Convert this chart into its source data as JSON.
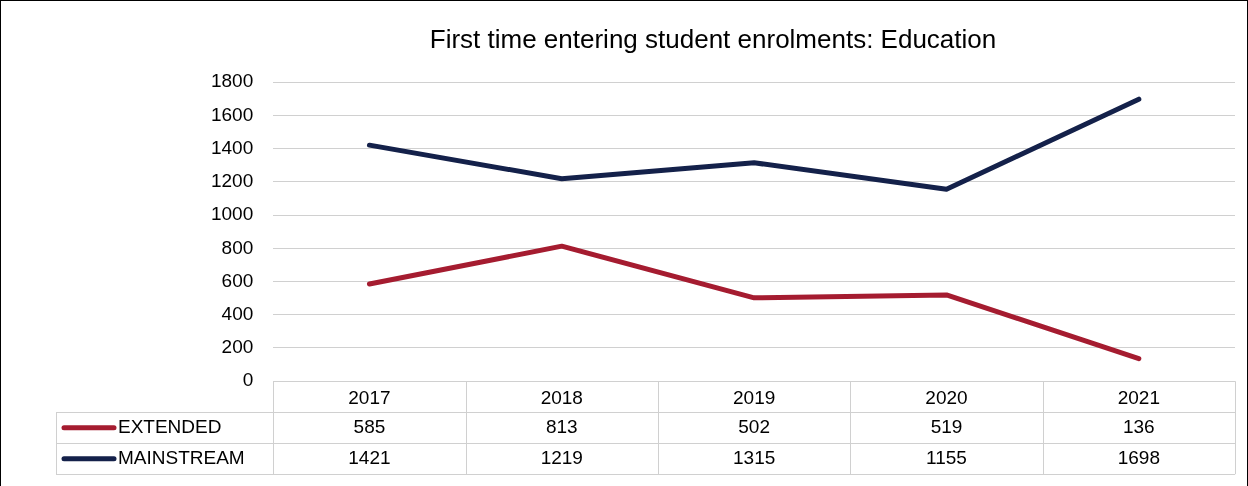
{
  "chart_data": {
    "type": "line",
    "title": "First time entering student enrolments: Education",
    "categories": [
      "2017",
      "2018",
      "2019",
      "2020",
      "2021"
    ],
    "series": [
      {
        "name": "EXTENDED",
        "color": "#a51c30",
        "values": [
          585,
          813,
          502,
          519,
          136
        ]
      },
      {
        "name": "MAINSTREAM",
        "color": "#14214a",
        "values": [
          1421,
          1219,
          1315,
          1155,
          1698
        ]
      }
    ],
    "ylim": [
      0,
      1800
    ],
    "yticks": [
      0,
      200,
      400,
      600,
      800,
      1000,
      1200,
      1400,
      1600,
      1800
    ],
    "grid": "y",
    "legend": "bottom",
    "data_labels": true,
    "marker": "none",
    "line_style": "solid"
  }
}
